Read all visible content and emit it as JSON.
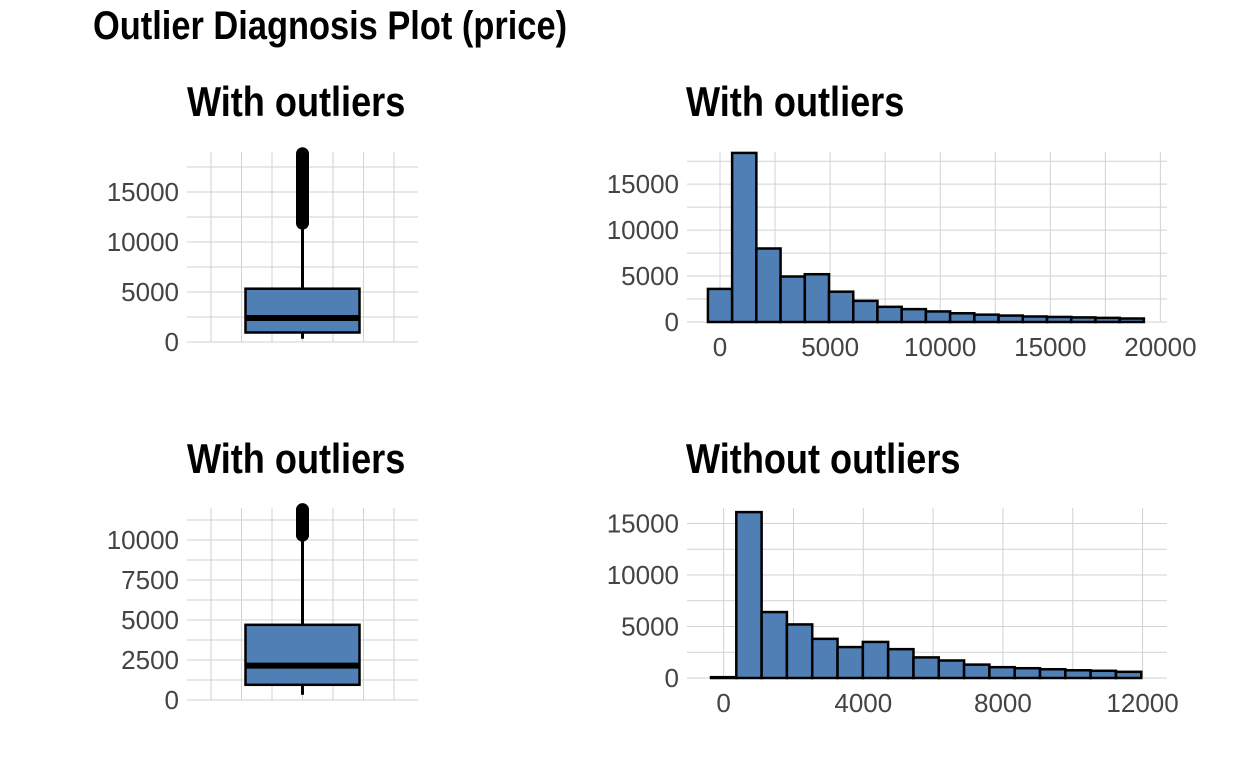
{
  "title": "Outlier Diagnosis Plot (price)",
  "colors": {
    "fill": "#4f7fb4",
    "stroke": "#000000",
    "grid": "#cfd2d6"
  },
  "chart_data": [
    {
      "type": "box",
      "title": "With outliers",
      "ylim": [
        0,
        19000
      ],
      "yticks": [
        0,
        5000,
        10000,
        15000
      ],
      "q1": 950,
      "median": 2400,
      "q3": 5330,
      "whisker_low": 326,
      "whisker_high": 11890,
      "outlier_range": [
        11890,
        18823
      ],
      "grid": true
    },
    {
      "type": "bar",
      "title": "With outliers",
      "x": [
        0,
        1100,
        2200,
        3300,
        4400,
        5500,
        6600,
        7700,
        8800,
        9900,
        11000,
        12100,
        13200,
        14300,
        15400,
        16500,
        17600,
        18700
      ],
      "values": [
        3600,
        18400,
        8000,
        4950,
        5200,
        3300,
        2300,
        1650,
        1400,
        1150,
        950,
        800,
        700,
        600,
        550,
        500,
        450,
        380
      ],
      "bin_width": 1100,
      "xlim": [
        -1500,
        20300
      ],
      "ylim": [
        0,
        18500
      ],
      "xticks": [
        0,
        5000,
        10000,
        15000,
        20000
      ],
      "yticks": [
        0,
        5000,
        10000,
        15000
      ],
      "grid": true
    },
    {
      "type": "box",
      "title": "With outliers",
      "ylim": [
        0,
        12000
      ],
      "yticks": [
        0,
        2500,
        5000,
        7500,
        10000
      ],
      "q1": 950,
      "median": 2150,
      "q3": 4700,
      "whisker_low": 326,
      "whisker_high": 10300,
      "outlier_range": [
        10300,
        11900
      ],
      "grid": true
    },
    {
      "type": "bar",
      "title": "Without outliers",
      "x": [
        0,
        725,
        1450,
        2175,
        2900,
        3625,
        4350,
        5075,
        5800,
        6525,
        7250,
        7975,
        8700,
        9425,
        10150,
        10875,
        11600
      ],
      "values": [
        80,
        16100,
        6400,
        5200,
        3800,
        3000,
        3500,
        2800,
        2000,
        1700,
        1300,
        1050,
        950,
        850,
        750,
        700,
        600
      ],
      "bin_width": 725,
      "xlim": [
        -1050,
        12700
      ],
      "ylim": [
        0,
        16500
      ],
      "xticks": [
        0,
        4000,
        8000,
        12000
      ],
      "yticks": [
        0,
        5000,
        10000,
        15000
      ],
      "grid": true
    }
  ]
}
